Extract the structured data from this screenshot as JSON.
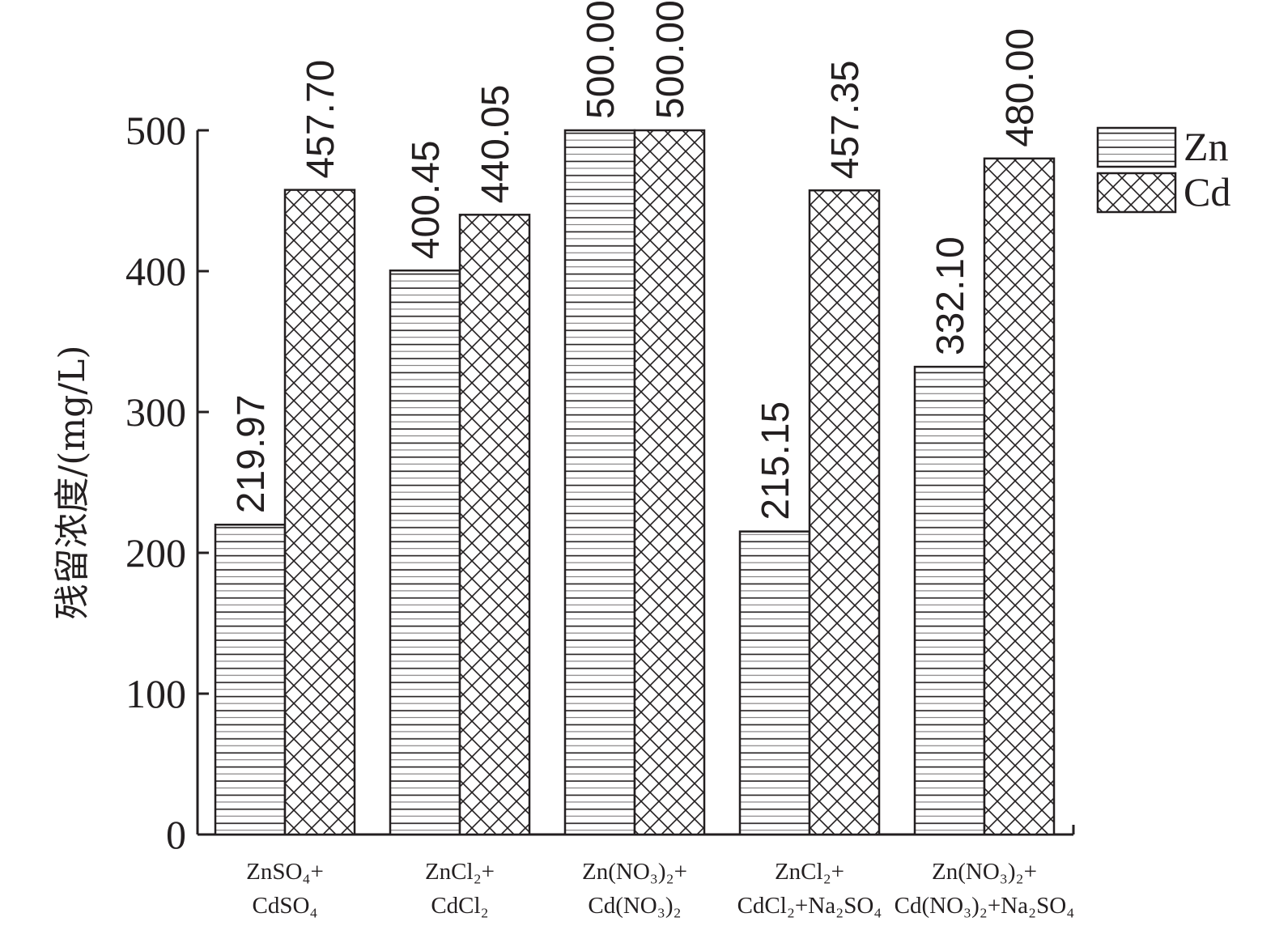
{
  "chart_data": {
    "type": "bar",
    "ylabel": "残留浓度/(mg/L)",
    "ylim": [
      0,
      500
    ],
    "yticks": [
      "0",
      "100",
      "200",
      "300",
      "400",
      "500"
    ],
    "grid": false,
    "legend_position": "top-right",
    "categories": [
      {
        "line1": "ZnSO₄+",
        "line2": "CdSO₄"
      },
      {
        "line1": "ZnCl₂+",
        "line2": "CdCl₂"
      },
      {
        "line1": "Zn(NO₃)₂+",
        "line2": "Cd(NO₃)₂"
      },
      {
        "line1": "ZnCl₂+",
        "line2": "CdCl₂+Na₂SO₄"
      },
      {
        "line1": "Zn(NO₃)₂+",
        "line2": "Cd(NO₃)₂+Na₂SO₄"
      }
    ],
    "series": [
      {
        "name": "Zn",
        "pattern": "horizontal-stripes",
        "values": [
          219.97,
          400.45,
          500.0,
          215.15,
          332.1
        ],
        "labels": [
          "219.97",
          "400.45",
          "500.00",
          "215.15",
          "332.10"
        ]
      },
      {
        "name": "Cd",
        "pattern": "crosshatch",
        "values": [
          457.7,
          440.05,
          500.0,
          457.35,
          480.0
        ],
        "labels": [
          "457.70",
          "440.05",
          "500.00",
          "457.35",
          "480.00"
        ]
      }
    ],
    "colors": {
      "stroke": "#231f20",
      "fill": "#ffffff"
    }
  }
}
